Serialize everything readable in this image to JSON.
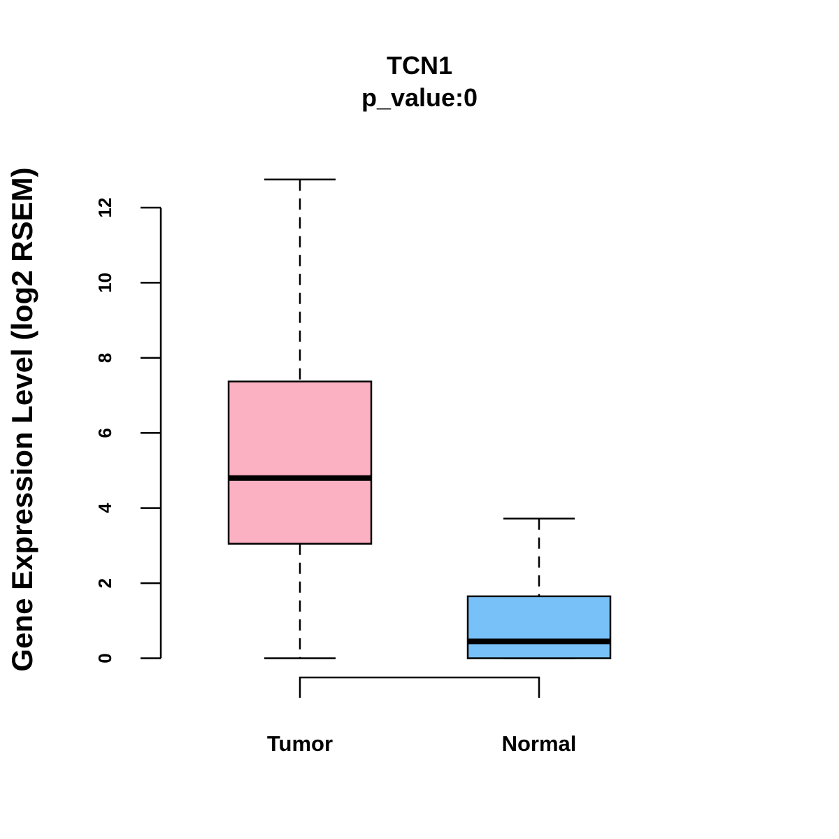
{
  "chart_data": {
    "type": "boxplot",
    "title": "TCN1",
    "subtitle": "p_value:0",
    "ylabel": "Gene Expression Level (log2 RSEM)",
    "xlabel": "",
    "ylim": [
      0,
      12
    ],
    "yticks": [
      "0",
      "2",
      "4",
      "6",
      "8",
      "10",
      "12"
    ],
    "groups": [
      {
        "name": "Tumor",
        "color": "#fcb1c3",
        "whisker_low": 0,
        "q1": 3.05,
        "median": 4.8,
        "q3": 7.37,
        "whisker_high": 12.75
      },
      {
        "name": "Normal",
        "color": "#78c1f8",
        "whisker_low": 0,
        "q1": 0,
        "median": 0.45,
        "q3": 1.65,
        "whisker_high": 3.72
      }
    ],
    "comparison_bracket": [
      "Tumor",
      "Normal"
    ]
  }
}
